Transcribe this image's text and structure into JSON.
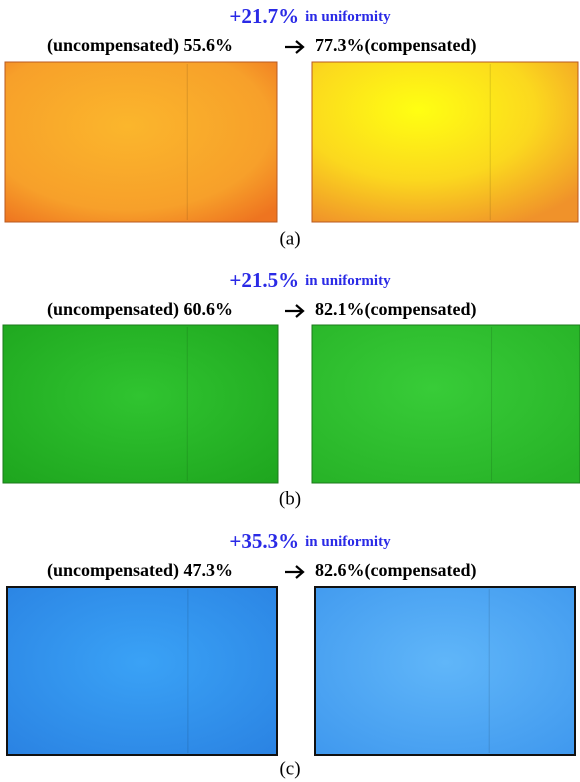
{
  "panels": [
    {
      "gain": "+21.7%",
      "gain_note": "in uniformity",
      "uncompensated": "(uncompensated) 55.6%",
      "compensated": "77.3%(compensated)",
      "caption": "(a)"
    },
    {
      "gain": "+21.5%",
      "gain_note": "in uniformity",
      "uncompensated": "(uncompensated) 60.6%",
      "compensated": "82.1%(compensated)",
      "caption": "(b)"
    },
    {
      "gain": "+35.3%",
      "gain_note": "in uniformity",
      "uncompensated": "(uncompensated) 47.3%",
      "compensated": "82.6%(compensated)",
      "caption": "(c)"
    }
  ]
}
